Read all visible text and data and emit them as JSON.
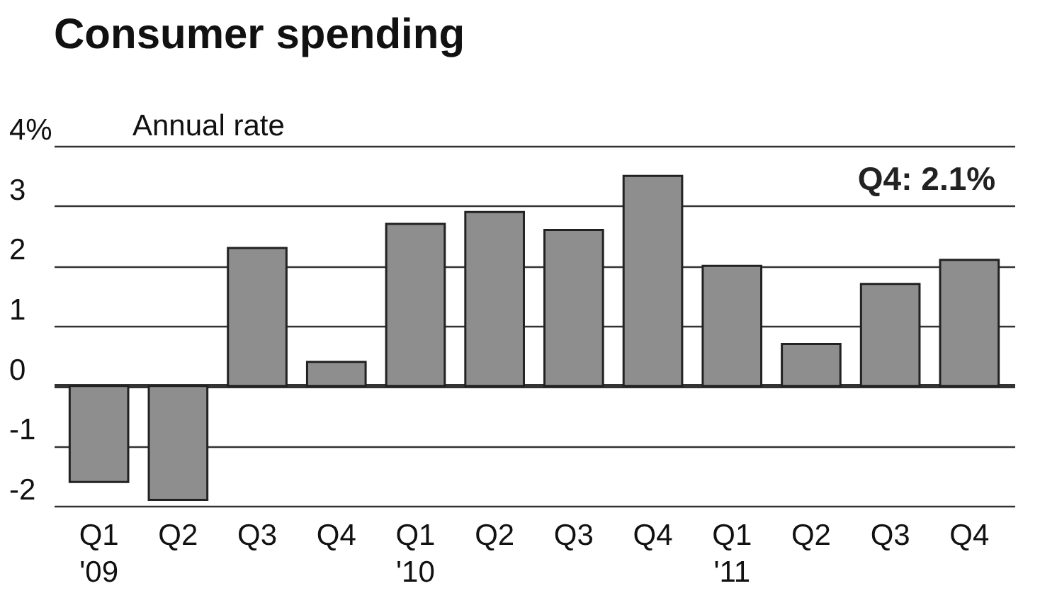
{
  "chart_data": {
    "type": "bar",
    "title": "Consumer spending",
    "ylabel": "Annual rate",
    "categories": [
      "Q1\n'09",
      "Q2",
      "Q3",
      "Q4",
      "Q1\n'10",
      "Q2",
      "Q3",
      "Q4",
      "Q1\n'11",
      "Q2",
      "Q3",
      "Q4"
    ],
    "values": [
      -1.6,
      -1.9,
      2.3,
      0.4,
      2.7,
      2.9,
      2.6,
      3.5,
      2.0,
      0.7,
      1.7,
      2.1
    ],
    "color": "#8e8e8e",
    "ylim": [
      -2,
      4
    ],
    "yticks": [
      {
        "value": 4,
        "label": "4%"
      },
      3,
      2,
      1,
      0,
      -1,
      -2
    ],
    "grid": "y",
    "annotations": [
      "Q4: 2.1%"
    ]
  }
}
